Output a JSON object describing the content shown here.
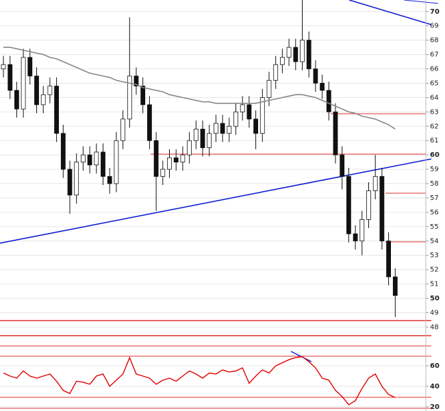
{
  "chart_data": [
    {
      "type": "candlestick",
      "open": [
        66.0,
        66.3,
        64.5,
        63.2,
        66.8,
        65.5,
        63.5,
        64.2,
        64.8,
        61.5,
        59.0,
        57.2,
        59.5,
        60.0,
        59.3,
        60.2,
        58.5,
        58.0,
        61.0,
        62.5,
        65.5,
        64.8,
        63.5,
        61.0,
        58.5,
        59.0,
        59.8,
        59.5,
        60.0,
        61.0,
        61.8,
        60.5,
        61.5,
        62.2,
        61.5,
        62.0,
        63.0,
        63.5,
        62.5,
        61.5,
        64.0,
        65.2,
        66.3,
        66.8,
        67.5,
        66.5,
        68.0,
        66.0,
        65.0,
        64.5,
        63.0,
        60.0,
        58.5,
        54.5,
        54.0,
        55.5,
        57.5,
        58.5,
        54.0,
        51.5
      ],
      "high": [
        66.9,
        66.9,
        65.1,
        67.4,
        67.4,
        66.1,
        64.8,
        65.4,
        65.4,
        62.1,
        59.6,
        60.1,
        60.6,
        60.6,
        60.8,
        60.8,
        59.1,
        61.6,
        63.1,
        69.6,
        66.1,
        65.4,
        64.1,
        61.6,
        59.6,
        60.4,
        60.4,
        60.6,
        61.6,
        62.4,
        62.4,
        62.1,
        62.8,
        62.8,
        62.6,
        63.6,
        64.1,
        64.1,
        63.1,
        64.6,
        65.8,
        66.9,
        67.4,
        68.1,
        68.1,
        70.8,
        68.6,
        66.6,
        65.6,
        65.1,
        63.6,
        60.6,
        59.1,
        55.1,
        56.1,
        58.1,
        60.0,
        59.1,
        54.6,
        52.1
      ],
      "low": [
        65.4,
        63.9,
        62.6,
        62.6,
        64.9,
        62.9,
        62.9,
        63.6,
        60.9,
        58.4,
        55.9,
        56.6,
        58.9,
        58.7,
        58.7,
        57.9,
        57.3,
        57.4,
        60.4,
        61.9,
        64.2,
        62.9,
        60.4,
        56.1,
        57.9,
        58.4,
        58.9,
        58.9,
        59.4,
        60.4,
        59.9,
        59.9,
        60.9,
        60.9,
        60.9,
        61.4,
        62.4,
        61.9,
        60.4,
        60.9,
        63.4,
        64.6,
        65.7,
        66.2,
        65.9,
        65.9,
        65.4,
        64.4,
        63.9,
        62.4,
        59.4,
        57.6,
        53.9,
        53.4,
        53.0,
        54.9,
        56.9,
        53.4,
        50.9,
        48.7
      ],
      "close": [
        66.3,
        64.5,
        63.2,
        66.8,
        65.5,
        63.5,
        64.2,
        64.8,
        61.5,
        59.0,
        57.2,
        59.5,
        60.0,
        59.3,
        60.2,
        58.5,
        58.0,
        61.0,
        62.5,
        65.5,
        64.8,
        63.5,
        61.0,
        58.5,
        59.0,
        59.8,
        59.5,
        60.0,
        61.0,
        61.8,
        60.5,
        61.5,
        62.2,
        61.5,
        62.0,
        63.0,
        63.5,
        62.5,
        61.5,
        64.0,
        65.2,
        66.3,
        66.8,
        67.5,
        66.5,
        68.0,
        66.0,
        65.0,
        64.5,
        63.0,
        60.0,
        58.5,
        54.5,
        54.0,
        55.5,
        57.5,
        58.5,
        54.0,
        51.5,
        50.2
      ],
      "color_up": "#ffffff",
      "color_down": "#111111",
      "series": [
        {
          "color": "#888888",
          "values": [
            67.5,
            67.5,
            67.4,
            67.3,
            67.2,
            67.1,
            67.0,
            66.8,
            66.7,
            66.5,
            66.3,
            66.1,
            65.9,
            65.7,
            65.6,
            65.5,
            65.4,
            65.2,
            65.1,
            65.0,
            64.9,
            64.7,
            64.6,
            64.5,
            64.4,
            64.2,
            64.1,
            64.0,
            63.9,
            63.8,
            63.7,
            63.7,
            63.6,
            63.6,
            63.6,
            63.6,
            63.6,
            63.6,
            63.6,
            63.7,
            63.8,
            63.9,
            64.0,
            64.1,
            64.2,
            64.2,
            64.1,
            64.0,
            63.8,
            63.6,
            63.4,
            63.2,
            63.0,
            62.9,
            62.7,
            62.6,
            62.5,
            62.3,
            62.1,
            61.8
          ]
        }
      ],
      "ylim": [
        47.4,
        70.8
      ],
      "yticks": [
        48,
        49,
        50,
        51,
        52,
        53,
        54,
        55,
        56,
        57,
        58,
        59,
        60,
        61,
        62,
        63,
        64,
        65,
        66,
        67,
        68,
        69,
        70
      ],
      "grid": true
    },
    {
      "type": "line",
      "color": "#e00000",
      "values": [
        53,
        50,
        48,
        55,
        50,
        48,
        50,
        52,
        45,
        36,
        33,
        45,
        44,
        42,
        50,
        52,
        40,
        46,
        52,
        68,
        52,
        50,
        48,
        42,
        46,
        48,
        45,
        50,
        55,
        52,
        48,
        53,
        52,
        56,
        54,
        55,
        58,
        43,
        50,
        56,
        53,
        60,
        63,
        66,
        68,
        69,
        64,
        58,
        48,
        46,
        36,
        30,
        22,
        26,
        38,
        48,
        52,
        40,
        32,
        29
      ],
      "ylim": [
        15.9,
        84.1
      ],
      "yticks": [
        20,
        40,
        60
      ],
      "grid": true
    }
  ]
}
